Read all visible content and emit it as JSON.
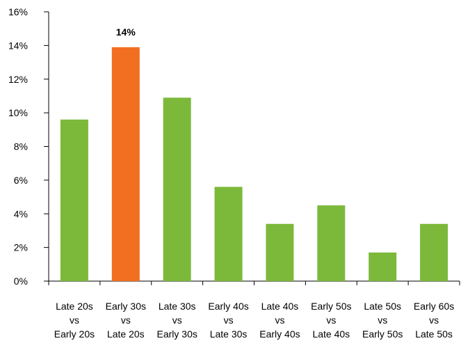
{
  "chart_data": {
    "type": "bar",
    "categories": [
      [
        "Late 20s",
        "vs",
        "Early 20s"
      ],
      [
        "Early 30s",
        "vs",
        "Late 20s"
      ],
      [
        "Late 30s",
        "vs",
        "Early 30s"
      ],
      [
        "Early 40s",
        "vs",
        "Late 30s"
      ],
      [
        "Late 40s",
        "vs",
        "Early 40s"
      ],
      [
        "Early 50s",
        "vs",
        "Late 40s"
      ],
      [
        "Late 50s",
        "vs",
        "Early 50s"
      ],
      [
        "Early 60s",
        "vs",
        "Late 50s"
      ]
    ],
    "values": [
      9.6,
      13.9,
      10.9,
      5.6,
      3.4,
      4.5,
      1.7,
      3.4
    ],
    "highlight_index": 1,
    "highlight_label": "14%",
    "ylim": [
      0,
      16
    ],
    "y_ticks": [
      0,
      2,
      4,
      6,
      8,
      10,
      12,
      14,
      16
    ],
    "y_tick_labels": [
      "0%",
      "2%",
      "4%",
      "6%",
      "8%",
      "10%",
      "12%",
      "14%",
      "16%"
    ],
    "title": "",
    "xlabel": "",
    "ylabel": "",
    "grid": false,
    "colors": {
      "bar": "#7cb93a",
      "highlight": "#f26f21",
      "axis": "#000000"
    }
  }
}
